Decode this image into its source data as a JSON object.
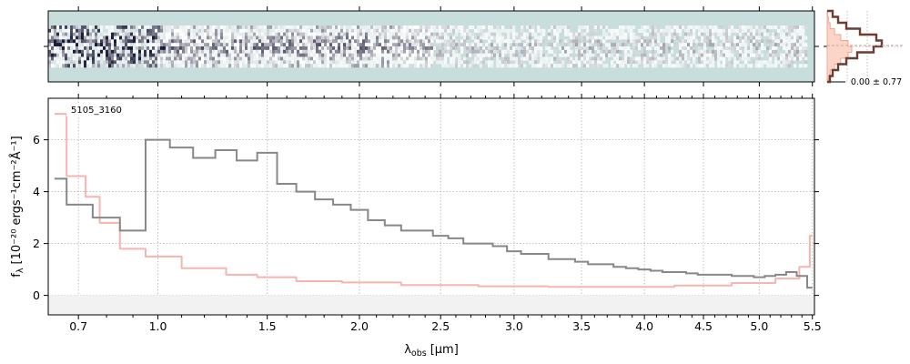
{
  "chart_data": [
    {
      "type": "heatmap",
      "panel": "2D spectrum",
      "colormap": [
        "#c8dedd",
        "#ffffff",
        "#1c1c38"
      ],
      "x_axis": "shared with 1D spectrum",
      "y_ticks": [
        0
      ]
    },
    {
      "type": "histogram",
      "panel": "pixel distribution",
      "annotation": "0.00 ± 0.77",
      "bins": [
        -3,
        -2.5,
        -2,
        -1.5,
        -1,
        -0.5,
        0,
        0.5,
        1,
        1.5,
        2,
        2.5,
        3
      ],
      "data_counts": [
        0.05,
        0.1,
        0.2,
        0.35,
        0.55,
        0.85,
        1.0,
        0.9,
        0.6,
        0.35,
        0.2,
        0.1
      ],
      "model_counts": [
        0.05,
        0.12,
        0.3,
        0.55,
        0.85,
        1.0,
        0.85,
        0.55,
        0.3,
        0.12,
        0.05,
        0.02
      ],
      "data_color": "#6b3d33",
      "model_fill": "#fbd5c7"
    },
    {
      "type": "line",
      "panel": "1D spectrum",
      "label": "5105_3160",
      "xlabel_main": "λ",
      "xlabel_sub": "obs",
      "xlabel_unit": "[μm]",
      "ylabel_main": "f",
      "ylabel_sub": "λ",
      "ylabel_unit": "[10⁻²⁰ ergs⁻¹cm⁻²Å⁻¹]",
      "x_scale": "sqrt",
      "xlim": [
        0.6,
        5.52
      ],
      "ylim": [
        -0.75,
        7.6
      ],
      "x_ticks": [
        0.7,
        1.0,
        1.5,
        2.0,
        2.5,
        3.0,
        3.5,
        4.0,
        4.5,
        5.0,
        5.5
      ],
      "x_tick_labels": [
        "0.7",
        "1.0",
        "1.5",
        "2.0",
        "2.5",
        "3.0",
        "3.5",
        "4.0",
        "4.5",
        "5.0",
        "5.5"
      ],
      "y_ticks": [
        0,
        2,
        4,
        6
      ],
      "y_tick_labels": [
        "0",
        "2",
        "4",
        "6"
      ],
      "grid": true,
      "series": [
        {
          "role": "flux",
          "color": "#888888",
          "x": [
            0.62,
            0.7,
            0.8,
            0.9,
            1.0,
            1.1,
            1.2,
            1.3,
            1.4,
            1.5,
            1.6,
            1.7,
            1.8,
            1.9,
            2.0,
            2.1,
            2.2,
            2.3,
            2.4,
            2.5,
            2.6,
            2.7,
            2.8,
            2.9,
            3.0,
            3.1,
            3.2,
            3.3,
            3.4,
            3.5,
            3.6,
            3.7,
            3.8,
            3.9,
            4.0,
            4.1,
            4.2,
            4.3,
            4.4,
            4.5,
            4.6,
            4.7,
            4.8,
            4.9,
            5.0,
            5.1,
            5.2,
            5.3,
            5.4,
            5.5
          ],
          "y": [
            4.5,
            3.5,
            3.0,
            2.5,
            6.0,
            5.7,
            5.3,
            5.6,
            5.2,
            5.5,
            4.3,
            4.0,
            3.7,
            3.5,
            3.3,
            2.9,
            2.7,
            2.5,
            2.5,
            2.3,
            2.2,
            2.0,
            2.0,
            1.9,
            1.7,
            1.6,
            1.6,
            1.4,
            1.4,
            1.3,
            1.2,
            1.2,
            1.1,
            1.05,
            1.0,
            0.95,
            0.9,
            0.9,
            0.85,
            0.8,
            0.8,
            0.8,
            0.75,
            0.75,
            0.7,
            0.75,
            0.8,
            0.9,
            0.75,
            0.3
          ]
        },
        {
          "role": "uncertainty",
          "color": "#f5b5b0",
          "x": [
            0.62,
            0.7,
            0.75,
            0.8,
            0.9,
            1.0,
            1.2,
            1.4,
            1.5,
            1.8,
            2.0,
            2.5,
            3.0,
            3.5,
            4.0,
            4.5,
            5.0,
            5.3,
            5.45,
            5.5
          ],
          "y": [
            7.0,
            4.6,
            3.8,
            2.8,
            1.8,
            1.5,
            1.05,
            0.8,
            0.7,
            0.55,
            0.5,
            0.4,
            0.35,
            0.33,
            0.33,
            0.38,
            0.48,
            0.65,
            1.1,
            2.3
          ]
        }
      ]
    }
  ]
}
